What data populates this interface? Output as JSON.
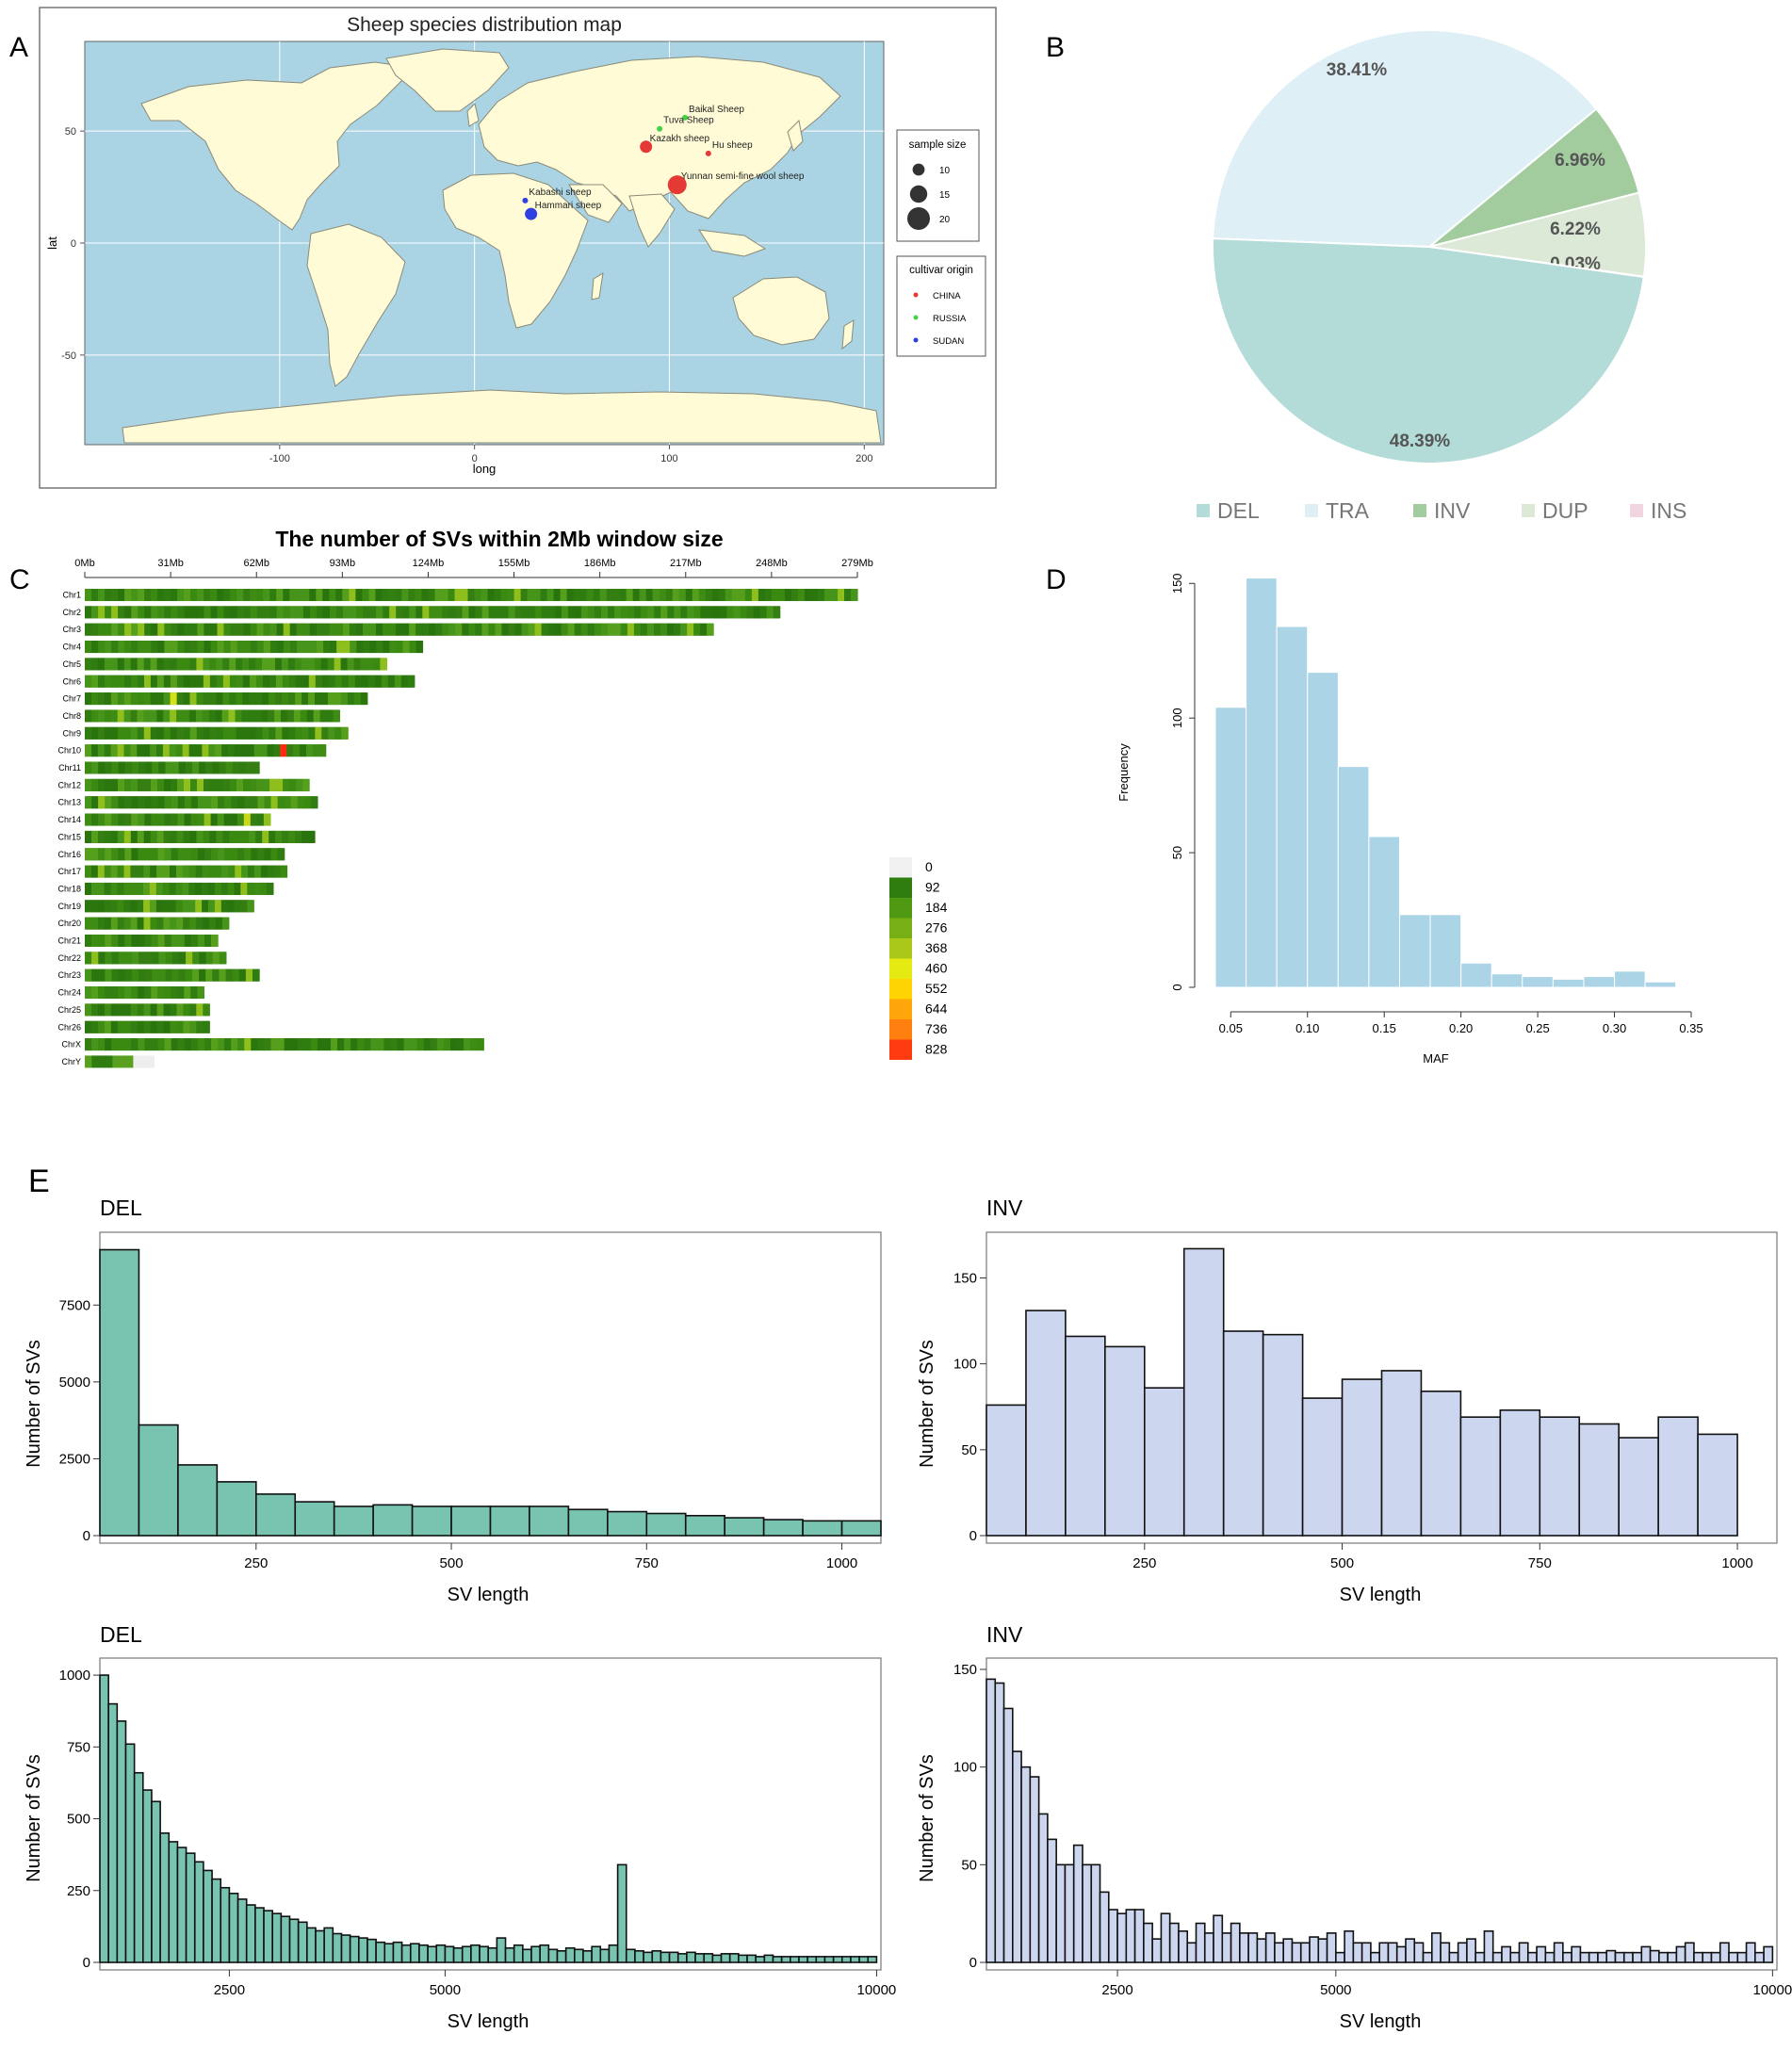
{
  "panel_labels": [
    "A",
    "B",
    "C",
    "D",
    "E"
  ],
  "chart_data": [
    {
      "id": "A",
      "type": "scatter",
      "title": "Sheep species distribution map",
      "xlabel": "long",
      "ylabel": "lat",
      "xlim": [
        -200,
        210
      ],
      "ylim": [
        -90,
        90
      ],
      "xticks": [
        -100,
        0,
        100,
        200
      ],
      "yticks": [
        -50,
        0,
        50
      ],
      "points": [
        {
          "label": "Baikal Sheep",
          "lon": 108,
          "lat": 56,
          "origin": "RUSSIA",
          "size": 10
        },
        {
          "label": "Tuva Sheep",
          "lon": 95,
          "lat": 51,
          "origin": "RUSSIA",
          "size": 10
        },
        {
          "label": "Kazakh sheep",
          "lon": 88,
          "lat": 43,
          "origin": "CHINA",
          "size": 15
        },
        {
          "label": "Hu sheep",
          "lon": 120,
          "lat": 40,
          "origin": "CHINA",
          "size": 10
        },
        {
          "label": "Yunnan semi-fine wool sheep",
          "lon": 104,
          "lat": 26,
          "origin": "CHINA",
          "size": 20
        },
        {
          "label": "Kabashi sheep",
          "lon": 26,
          "lat": 19,
          "origin": "SUDAN",
          "size": 10
        },
        {
          "label": "Hammari sheep",
          "lon": 29,
          "lat": 13,
          "origin": "SUDAN",
          "size": 15
        }
      ],
      "legend_size": {
        "title": "sample size",
        "values": [
          10,
          15,
          20
        ]
      },
      "legend_origin": {
        "title": "cultivar origin",
        "entries": [
          {
            "label": "CHINA",
            "color": "#e53935"
          },
          {
            "label": "RUSSIA",
            "color": "#43d147"
          },
          {
            "label": "SUDAN",
            "color": "#2f3fe0"
          }
        ]
      }
    },
    {
      "id": "B",
      "type": "pie",
      "slices": [
        {
          "label": "DEL",
          "value": 48.39,
          "text": "48.39%",
          "color": "#b3dcd8"
        },
        {
          "label": "TRA",
          "value": 38.41,
          "text": "38.41%",
          "color": "#dfeff6"
        },
        {
          "label": "INV",
          "value": 6.96,
          "text": "6.96%",
          "color": "#a2cc9e"
        },
        {
          "label": "DUP",
          "value": 6.22,
          "text": "6.22%",
          "color": "#dbe9d6"
        },
        {
          "label": "INS",
          "value": 0.03,
          "text": "0.03%",
          "color": "#f0d4e0"
        }
      ]
    },
    {
      "id": "C",
      "type": "heatmap",
      "title": "The number of SVs within 2Mb window size",
      "xticks": [
        "0Mb",
        "31Mb",
        "62Mb",
        "93Mb",
        "124Mb",
        "155Mb",
        "186Mb",
        "217Mb",
        "248Mb",
        "279Mb"
      ],
      "xmax": 279,
      "chromosomes": [
        {
          "name": "Chr1",
          "length": 279
        },
        {
          "name": "Chr2",
          "length": 251
        },
        {
          "name": "Chr3",
          "length": 227
        },
        {
          "name": "Chr4",
          "length": 122
        },
        {
          "name": "Chr5",
          "length": 109
        },
        {
          "name": "Chr6",
          "length": 119
        },
        {
          "name": "Chr7",
          "length": 102
        },
        {
          "name": "Chr8",
          "length": 92
        },
        {
          "name": "Chr9",
          "length": 95
        },
        {
          "name": "Chr10",
          "length": 87
        },
        {
          "name": "Chr11",
          "length": 63
        },
        {
          "name": "Chr12",
          "length": 81
        },
        {
          "name": "Chr13",
          "length": 84
        },
        {
          "name": "Chr14",
          "length": 67
        },
        {
          "name": "Chr15",
          "length": 83
        },
        {
          "name": "Chr16",
          "length": 72
        },
        {
          "name": "Chr17",
          "length": 73
        },
        {
          "name": "Chr18",
          "length": 68
        },
        {
          "name": "Chr19",
          "length": 61
        },
        {
          "name": "Chr20",
          "length": 52
        },
        {
          "name": "Chr21",
          "length": 48
        },
        {
          "name": "Chr22",
          "length": 51
        },
        {
          "name": "Chr23",
          "length": 63
        },
        {
          "name": "Chr24",
          "length": 43
        },
        {
          "name": "Chr25",
          "length": 45
        },
        {
          "name": "Chr26",
          "length": 45
        },
        {
          "name": "ChrX",
          "length": 144
        },
        {
          "name": "ChrY",
          "length": 25
        }
      ],
      "legend": [
        "0",
        "92",
        "184",
        "276",
        "368",
        "460",
        "552",
        "644",
        "736",
        "828"
      ],
      "legend_colors": [
        "#f0f0f0",
        "#2e7d0e",
        "#4f9a12",
        "#76b014",
        "#a9c81a",
        "#e4ea12",
        "#ffd400",
        "#ffa60a",
        "#ff7f0f",
        "#ff3b12"
      ]
    },
    {
      "id": "D",
      "type": "bar",
      "xlabel": "MAF",
      "ylabel": "Frequency",
      "xlim": [
        0.04,
        0.35
      ],
      "ylim": [
        0,
        155
      ],
      "xticks": [
        0.05,
        0.1,
        0.15,
        0.2,
        0.25,
        0.3,
        0.35
      ],
      "yticks": [
        0,
        50,
        100,
        150
      ],
      "bin_start": 0.04,
      "bin_width": 0.02,
      "values": [
        104,
        152,
        134,
        117,
        82,
        56,
        27,
        27,
        9,
        5,
        4,
        3,
        4,
        6,
        2
      ],
      "color": "#abd5e6"
    },
    {
      "id": "E-DEL-1000",
      "type": "bar",
      "title": "DEL",
      "xlabel": "SV length",
      "ylabel": "Number of SVs",
      "xlim": [
        50,
        1050
      ],
      "ylim": [
        0,
        9500
      ],
      "xticks": [
        250,
        500,
        750,
        1000
      ],
      "yticks": [
        0,
        2500,
        5000,
        7500
      ],
      "bin_start": 50,
      "bin_width": 50,
      "values": [
        9300,
        3600,
        2300,
        1750,
        1350,
        1100,
        950,
        1000,
        950,
        950,
        950,
        950,
        850,
        780,
        720,
        650,
        580,
        520,
        480,
        480
      ],
      "color": "#79c4b0"
    },
    {
      "id": "E-INV-1000",
      "type": "bar",
      "title": "INV",
      "xlabel": "SV length",
      "ylabel": "Number of SVs",
      "xlim": [
        50,
        1050
      ],
      "ylim": [
        0,
        170
      ],
      "xticks": [
        250,
        500,
        750,
        1000
      ],
      "yticks": [
        0,
        50,
        100,
        150
      ],
      "bin_start": 50,
      "bin_width": 50,
      "values": [
        76,
        131,
        116,
        110,
        86,
        167,
        119,
        117,
        80,
        91,
        96,
        84,
        69,
        73,
        69,
        65,
        57,
        69,
        59
      ],
      "color": "#ccd6ee"
    },
    {
      "id": "E-DEL-10000",
      "type": "bar",
      "title": "DEL",
      "xlabel": "SV length",
      "ylabel": "Number of SVs",
      "xlim": [
        1000,
        10050
      ],
      "ylim": [
        0,
        1020
      ],
      "xticks": [
        2500,
        5000,
        10000
      ],
      "yticks": [
        0,
        250,
        500,
        750,
        1000
      ],
      "bin_start": 1000,
      "bin_width": 100,
      "values": [
        1000,
        900,
        840,
        760,
        660,
        600,
        560,
        450,
        420,
        400,
        380,
        350,
        320,
        290,
        260,
        240,
        220,
        200,
        190,
        180,
        170,
        160,
        150,
        140,
        120,
        110,
        120,
        100,
        95,
        90,
        85,
        80,
        70,
        65,
        70,
        60,
        65,
        60,
        55,
        60,
        55,
        50,
        55,
        60,
        55,
        50,
        85,
        50,
        60,
        45,
        55,
        60,
        45,
        40,
        50,
        45,
        40,
        55,
        45,
        60,
        340,
        45,
        40,
        35,
        40,
        35,
        35,
        30,
        35,
        30,
        30,
        25,
        30,
        30,
        25,
        25,
        20,
        25,
        20,
        20,
        20,
        20,
        20,
        20,
        20,
        20,
        20,
        20,
        20,
        20
      ],
      "color": "#79c4b0"
    },
    {
      "id": "E-INV-10000",
      "type": "bar",
      "title": "INV",
      "xlabel": "SV length",
      "ylabel": "Number of SVs",
      "xlim": [
        1000,
        10050
      ],
      "ylim": [
        0,
        150
      ],
      "xticks": [
        2500,
        5000,
        10000
      ],
      "yticks": [
        0,
        50,
        100,
        150
      ],
      "bin_start": 1000,
      "bin_width": 100,
      "values": [
        145,
        143,
        130,
        108,
        100,
        95,
        76,
        63,
        50,
        50,
        60,
        50,
        50,
        36,
        27,
        25,
        27,
        27,
        20,
        12,
        25,
        20,
        16,
        10,
        20,
        15,
        24,
        15,
        20,
        15,
        15,
        12,
        15,
        10,
        12,
        10,
        10,
        13,
        12,
        15,
        5,
        16,
        10,
        10,
        5,
        10,
        10,
        8,
        12,
        10,
        5,
        15,
        10,
        5,
        10,
        12,
        5,
        16,
        5,
        8,
        5,
        10,
        5,
        8,
        5,
        10,
        5,
        8,
        5,
        5,
        5,
        6,
        5,
        5,
        5,
        8,
        6,
        5,
        5,
        8,
        10,
        5,
        5,
        5,
        10,
        5,
        5,
        10,
        5,
        8
      ],
      "color": "#ccd6ee"
    }
  ]
}
